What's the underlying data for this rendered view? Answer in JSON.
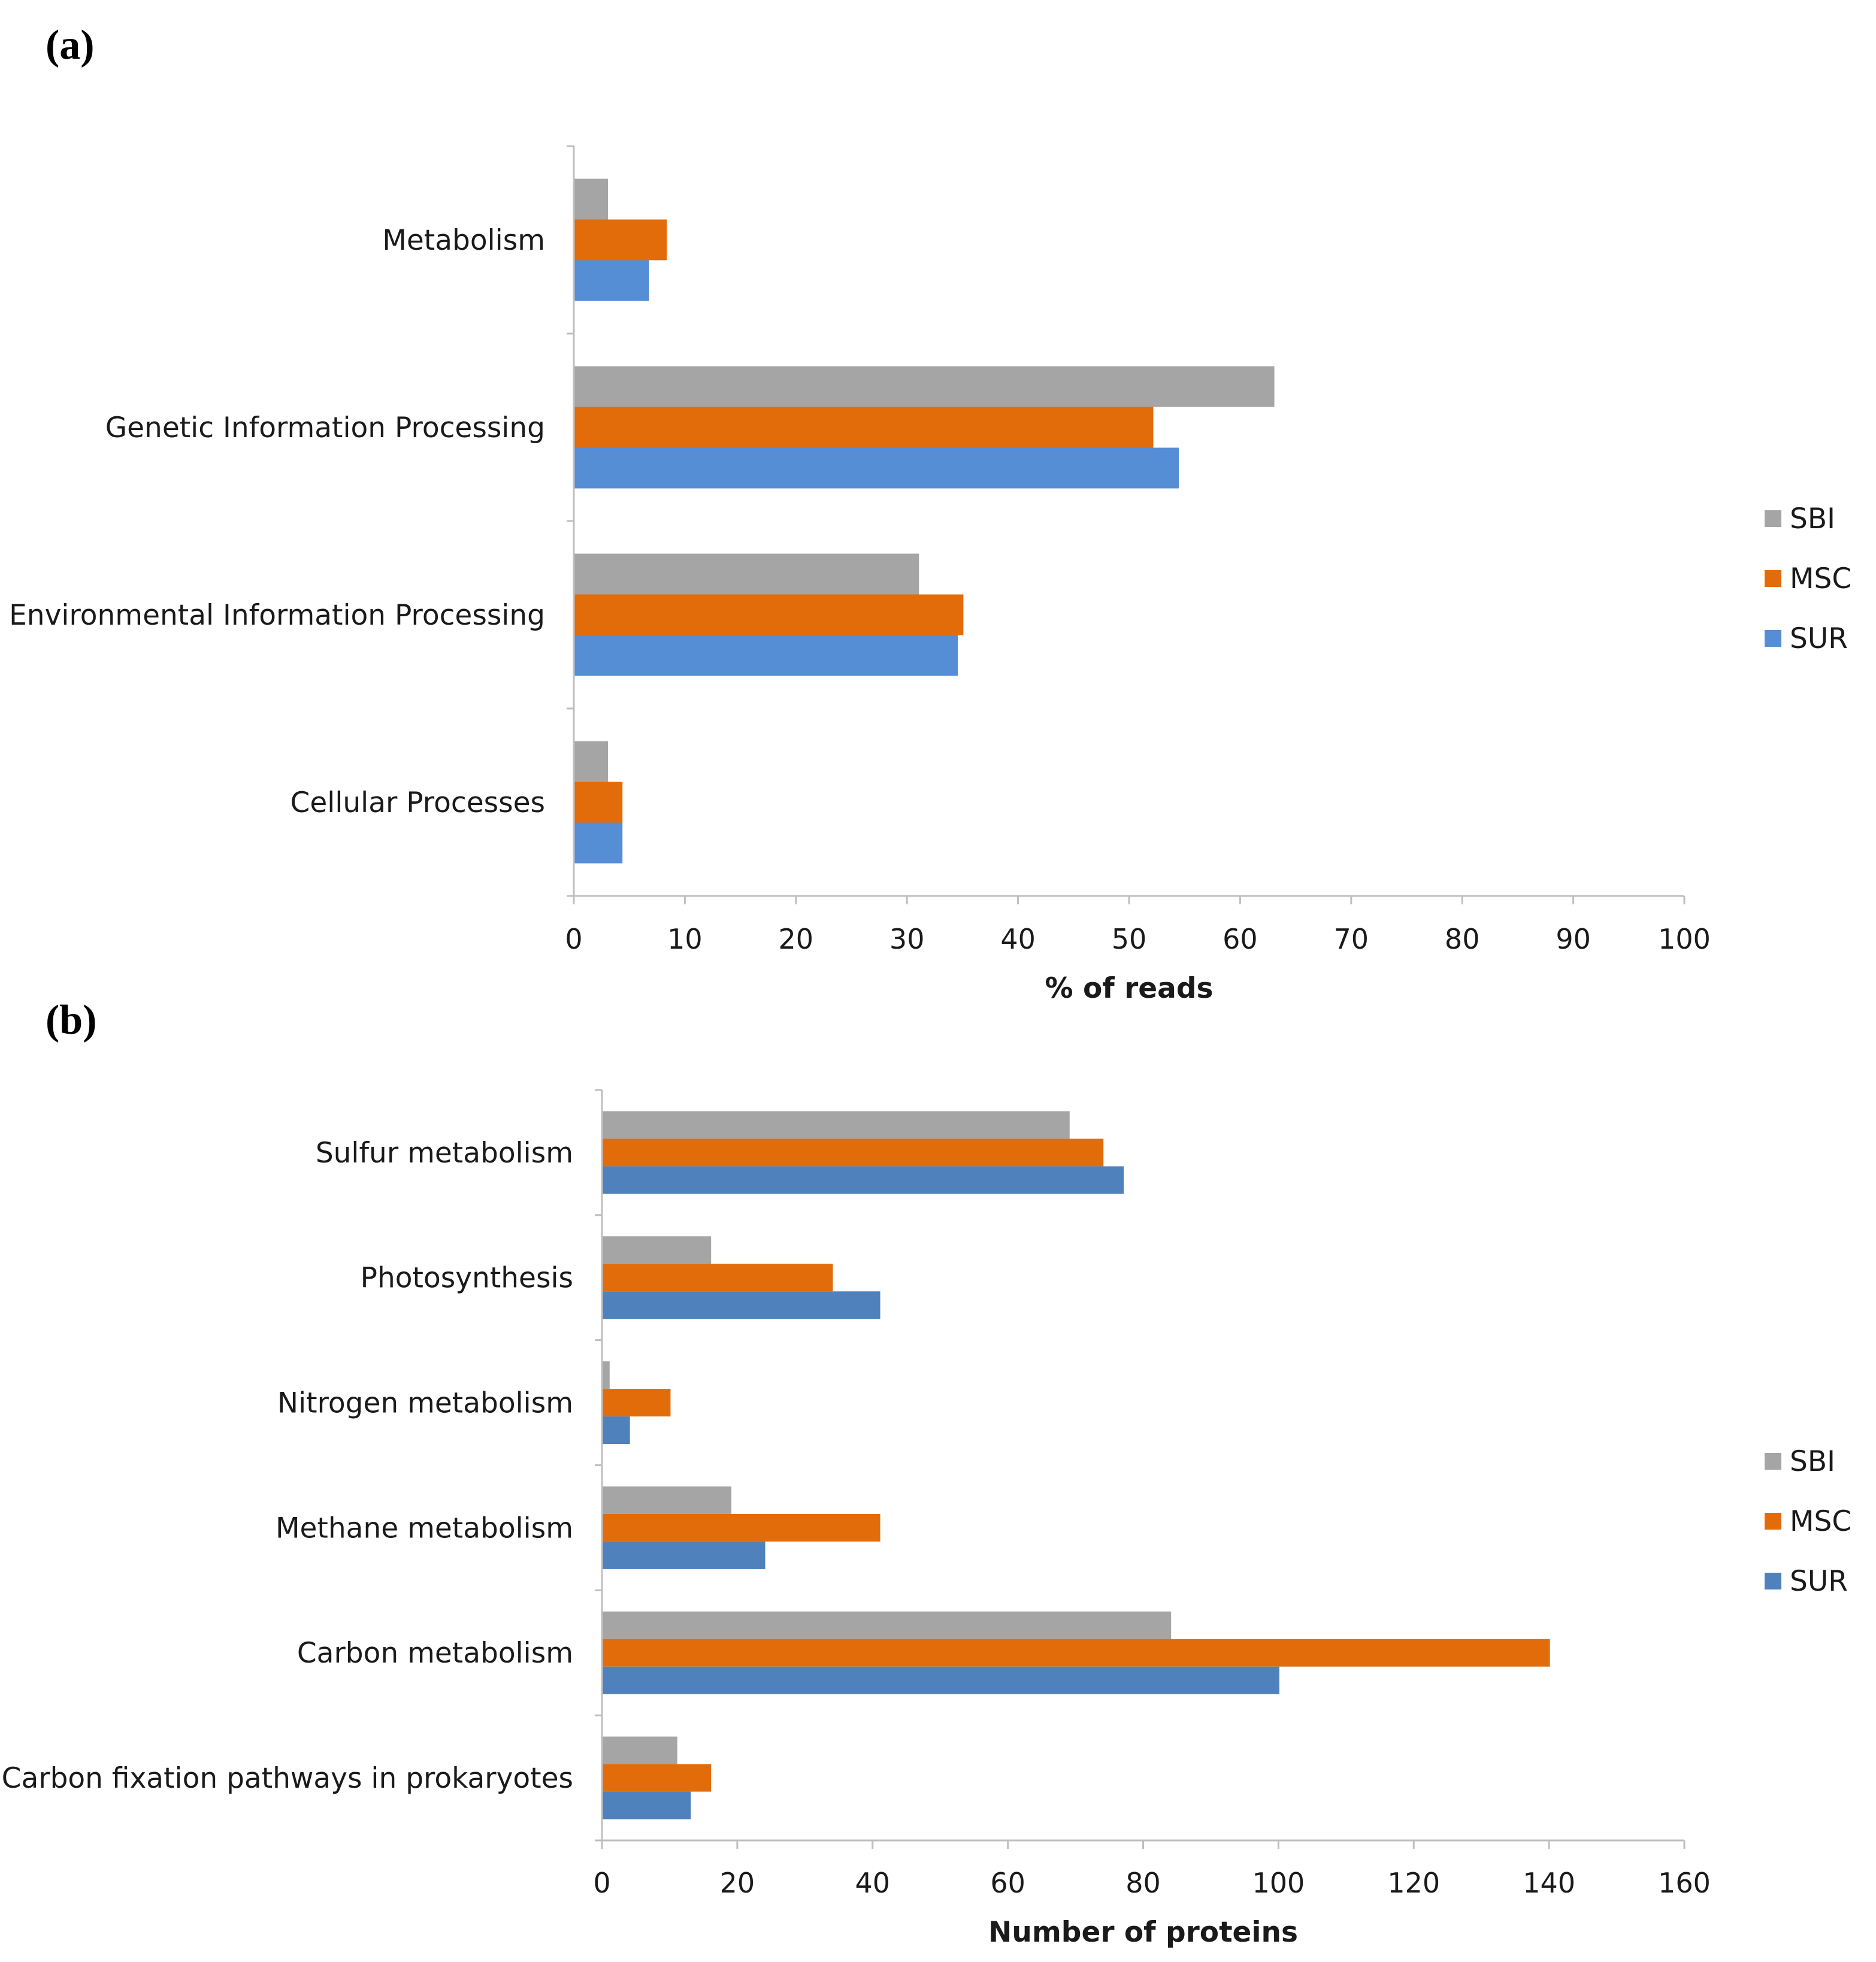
{
  "panels": {
    "a": "(a)",
    "b": "(b)"
  },
  "colors": {
    "SBI": "#a5a5a5",
    "MSC": "#e36c0a",
    "SUR_a": "#558ed5",
    "SUR_b": "#4f81bd"
  },
  "chart_data": [
    {
      "type": "bar",
      "orientation": "horizontal",
      "categories": [
        "Metabolism",
        "Genetic Information Processing",
        "Environmental Information Processing",
        "Cellular Processes"
      ],
      "series": [
        {
          "name": "SBI",
          "values": [
            3,
            63,
            31,
            3
          ]
        },
        {
          "name": "MSC",
          "values": [
            8.3,
            52.1,
            35,
            4.3
          ]
        },
        {
          "name": "SUR",
          "values": [
            6.7,
            54.4,
            34.5,
            4.3
          ]
        }
      ],
      "xlabel": "% of reads",
      "xlim": [
        0,
        100
      ],
      "xticks": [
        "0",
        "10",
        "20",
        "30",
        "40",
        "50",
        "60",
        "70",
        "80",
        "90",
        "100"
      ],
      "legend": [
        "SBI",
        "MSC",
        "SUR"
      ],
      "legend_position": "right"
    },
    {
      "type": "bar",
      "orientation": "horizontal",
      "categories": [
        "Sulfur metabolism",
        "Photosynthesis",
        "Nitrogen metabolism",
        "Methane metabolism",
        "Carbon metabolism",
        "Carbon fixation pathways in prokaryotes"
      ],
      "series": [
        {
          "name": "SBI",
          "values": [
            69,
            16,
            1,
            19,
            84,
            11
          ]
        },
        {
          "name": "MSC",
          "values": [
            74,
            34,
            10,
            41,
            140,
            16
          ]
        },
        {
          "name": "SUR",
          "values": [
            77,
            41,
            4,
            24,
            100,
            13
          ]
        }
      ],
      "xlabel": "Number of proteins",
      "xlim": [
        0,
        160
      ],
      "xticks": [
        "0",
        "20",
        "40",
        "60",
        "80",
        "100",
        "120",
        "140",
        "160"
      ],
      "legend": [
        "SBI",
        "MSC",
        "SUR"
      ],
      "legend_position": "right"
    }
  ]
}
